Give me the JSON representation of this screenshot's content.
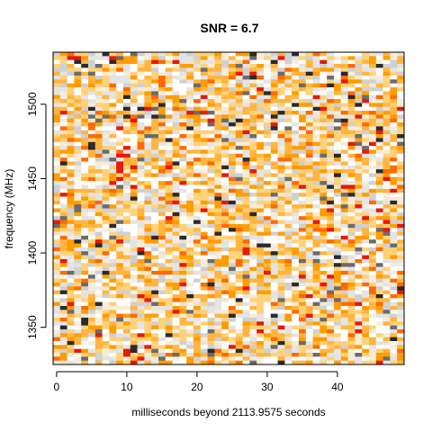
{
  "chart_data": {
    "type": "heatmap",
    "title": "SNR = 6.7",
    "xlabel": "milliseconds beyond 2113.9575 seconds",
    "ylabel": "frequency (MHz)",
    "xlim": [
      -0.5,
      49.5
    ],
    "ylim": [
      1325,
      1535
    ],
    "x_ticks": [
      0,
      10,
      20,
      30,
      40
    ],
    "y_ticks": [
      1350,
      1400,
      1450,
      1500
    ],
    "n_time_bins": 50,
    "n_freq_bins": 80,
    "palette": [
      "#ffffff",
      "#f7ecd9",
      "#e4e4e4",
      "#d0d0d0",
      "#ffd27a",
      "#ffb540",
      "#ff9d00",
      "#ff6a00",
      "#e8180a",
      "#6b6b6b",
      "#2a2a2a"
    ],
    "palette_weights": [
      0.16,
      0.11,
      0.12,
      0.08,
      0.16,
      0.14,
      0.1,
      0.05,
      0.03,
      0.03,
      0.02
    ],
    "grid": false,
    "legend": "none"
  }
}
